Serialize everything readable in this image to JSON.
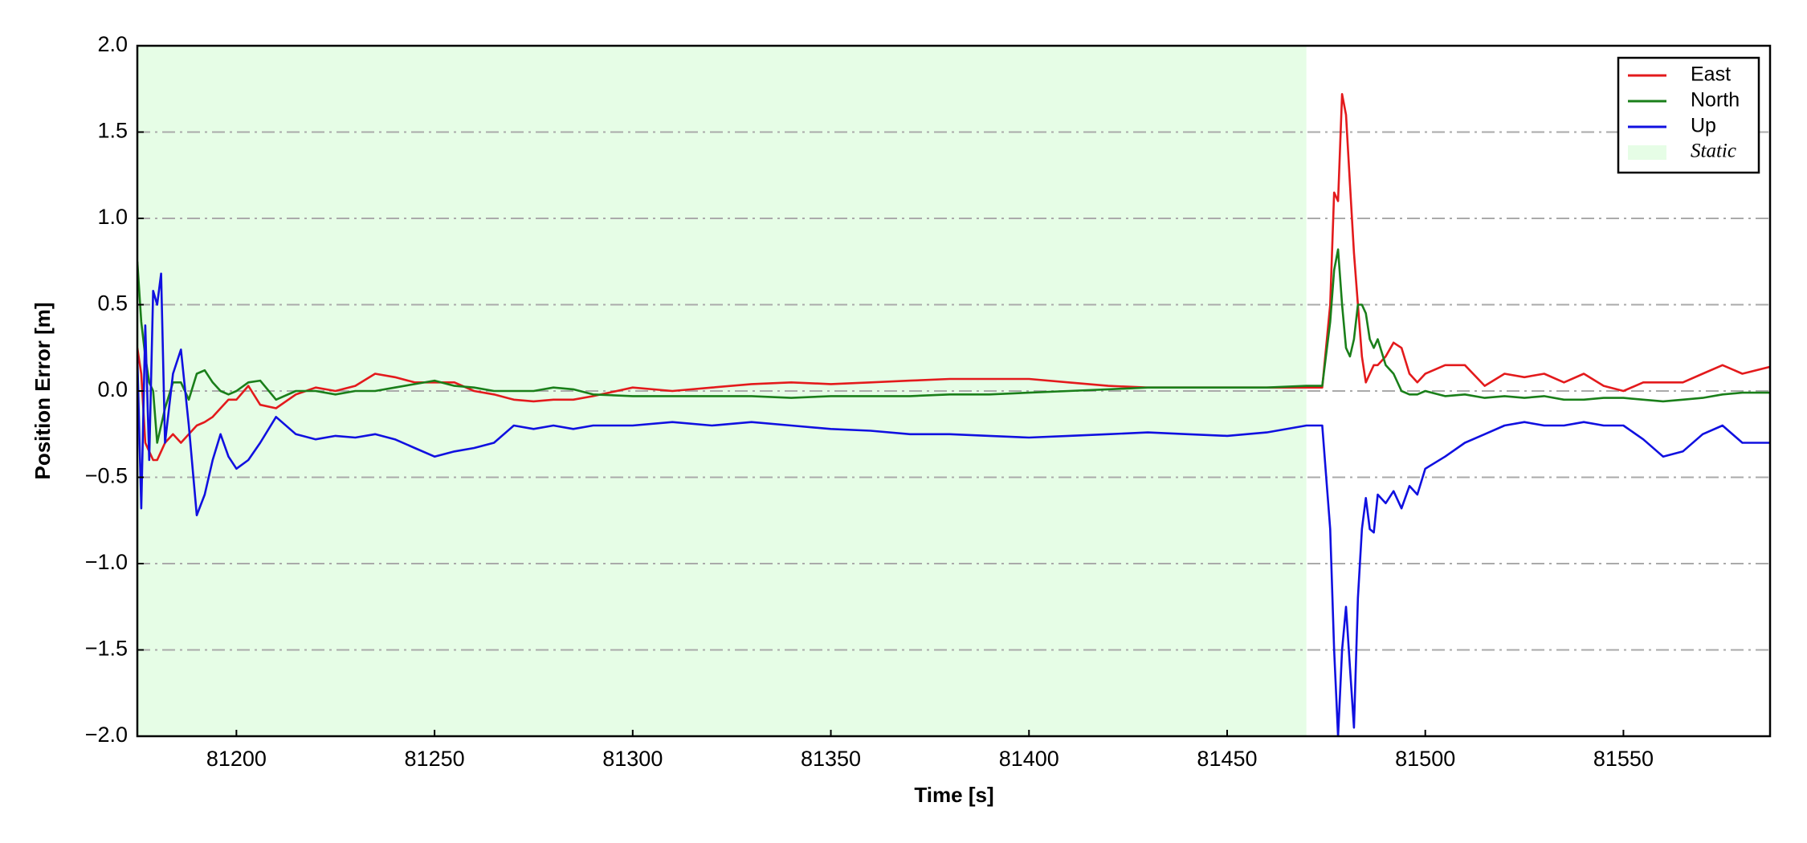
{
  "chart_data": {
    "type": "line",
    "xlabel": "Time [s]",
    "ylabel": "Position Error [m]",
    "x": [
      81175,
      81176,
      81177,
      81178,
      81179,
      81180,
      81181,
      81182,
      81184,
      81186,
      81188,
      81190,
      81192,
      81194,
      81196,
      81198,
      81200,
      81203,
      81206,
      81210,
      81215,
      81220,
      81225,
      81230,
      81235,
      81240,
      81245,
      81250,
      81255,
      81260,
      81265,
      81270,
      81275,
      81280,
      81285,
      81290,
      81300,
      81310,
      81320,
      81330,
      81340,
      81350,
      81360,
      81370,
      81380,
      81390,
      81400,
      81410,
      81420,
      81430,
      81440,
      81450,
      81460,
      81470,
      81474,
      81476,
      81477,
      81478,
      81479,
      81480,
      81481,
      81482,
      81483,
      81484,
      81485,
      81486,
      81487,
      81488,
      81490,
      81492,
      81494,
      81496,
      81498,
      81500,
      81505,
      81510,
      81515,
      81520,
      81525,
      81530,
      81535,
      81540,
      81545,
      81550,
      81555,
      81560,
      81565,
      81570,
      81575,
      81580,
      81587
    ],
    "series": [
      {
        "name": "East",
        "color": "#e31a1c",
        "values": [
          0.25,
          0.1,
          -0.3,
          -0.35,
          -0.4,
          -0.4,
          -0.35,
          -0.3,
          -0.25,
          -0.3,
          -0.25,
          -0.2,
          -0.18,
          -0.15,
          -0.1,
          -0.05,
          -0.05,
          0.03,
          -0.08,
          -0.1,
          -0.02,
          0.02,
          0.0,
          0.03,
          0.1,
          0.08,
          0.05,
          0.05,
          0.05,
          0.0,
          -0.02,
          -0.05,
          -0.06,
          -0.05,
          -0.05,
          -0.03,
          0.02,
          0.0,
          0.02,
          0.04,
          0.05,
          0.04,
          0.05,
          0.06,
          0.07,
          0.07,
          0.07,
          0.05,
          0.03,
          0.02,
          0.02,
          0.02,
          0.02,
          0.02,
          0.02,
          0.5,
          1.15,
          1.1,
          1.72,
          1.6,
          1.2,
          0.8,
          0.5,
          0.2,
          0.05,
          0.1,
          0.15,
          0.15,
          0.2,
          0.28,
          0.25,
          0.1,
          0.05,
          0.1,
          0.15,
          0.15,
          0.03,
          0.1,
          0.08,
          0.1,
          0.05,
          0.1,
          0.03,
          0.0,
          0.05,
          0.05,
          0.05,
          0.1,
          0.15,
          0.1,
          0.14
        ]
      },
      {
        "name": "North",
        "color": "#1a7f1a",
        "values": [
          0.75,
          0.4,
          0.2,
          0.05,
          0.0,
          -0.3,
          -0.2,
          -0.1,
          0.05,
          0.05,
          -0.05,
          0.1,
          0.12,
          0.05,
          0.0,
          -0.02,
          0.0,
          0.05,
          0.06,
          -0.05,
          0.0,
          0.0,
          -0.02,
          0.0,
          0.0,
          0.02,
          0.04,
          0.06,
          0.03,
          0.02,
          0.0,
          0.0,
          0.0,
          0.02,
          0.01,
          -0.02,
          -0.03,
          -0.03,
          -0.03,
          -0.03,
          -0.04,
          -0.03,
          -0.03,
          -0.03,
          -0.02,
          -0.02,
          -0.01,
          0.0,
          0.01,
          0.02,
          0.02,
          0.02,
          0.02,
          0.03,
          0.03,
          0.4,
          0.7,
          0.82,
          0.5,
          0.25,
          0.2,
          0.3,
          0.5,
          0.5,
          0.45,
          0.3,
          0.25,
          0.3,
          0.15,
          0.1,
          0.0,
          -0.02,
          -0.02,
          0.0,
          -0.03,
          -0.02,
          -0.04,
          -0.03,
          -0.04,
          -0.03,
          -0.05,
          -0.05,
          -0.04,
          -0.04,
          -0.05,
          -0.06,
          -0.05,
          -0.04,
          -0.02,
          -0.01,
          -0.01
        ]
      },
      {
        "name": "Up",
        "color": "#1010e0",
        "values": [
          0.2,
          -0.68,
          0.38,
          -0.4,
          0.58,
          0.5,
          0.68,
          -0.3,
          0.1,
          0.24,
          -0.2,
          -0.72,
          -0.6,
          -0.4,
          -0.25,
          -0.38,
          -0.45,
          -0.4,
          -0.3,
          -0.15,
          -0.25,
          -0.28,
          -0.26,
          -0.27,
          -0.25,
          -0.28,
          -0.33,
          -0.38,
          -0.35,
          -0.33,
          -0.3,
          -0.2,
          -0.22,
          -0.2,
          -0.22,
          -0.2,
          -0.2,
          -0.18,
          -0.2,
          -0.18,
          -0.2,
          -0.22,
          -0.23,
          -0.25,
          -0.25,
          -0.26,
          -0.27,
          -0.26,
          -0.25,
          -0.24,
          -0.25,
          -0.26,
          -0.24,
          -0.2,
          -0.2,
          -0.8,
          -1.5,
          -2.0,
          -1.5,
          -1.25,
          -1.6,
          -1.95,
          -1.2,
          -0.8,
          -0.62,
          -0.8,
          -0.82,
          -0.6,
          -0.65,
          -0.58,
          -0.68,
          -0.55,
          -0.6,
          -0.45,
          -0.38,
          -0.3,
          -0.25,
          -0.2,
          -0.18,
          -0.2,
          -0.2,
          -0.18,
          -0.2,
          -0.2,
          -0.28,
          -0.38,
          -0.35,
          -0.25,
          -0.2,
          -0.3,
          -0.3
        ]
      }
    ],
    "shaded_region": {
      "name": "Static",
      "xrange": [
        81175,
        81470
      ],
      "color": "#e6fde6"
    },
    "xlim": [
      81175,
      81587
    ],
    "ylim": [
      -2.0,
      2.0
    ],
    "xticks": [
      81200,
      81250,
      81300,
      81350,
      81400,
      81450,
      81500,
      81550
    ],
    "yticks": [
      {
        "value": -2.0,
        "label": "−2.0"
      },
      {
        "value": -1.5,
        "label": "−1.5"
      },
      {
        "value": -1.0,
        "label": "−1.0"
      },
      {
        "value": -0.5,
        "label": "−0.5"
      },
      {
        "value": 0.0,
        "label": "0.0"
      },
      0.5,
      {
        "value": 1.0,
        "label": "1.0"
      },
      1.5,
      {
        "value": 2.0,
        "label": "2.0"
      }
    ],
    "grid": true,
    "legend": "upper right"
  }
}
